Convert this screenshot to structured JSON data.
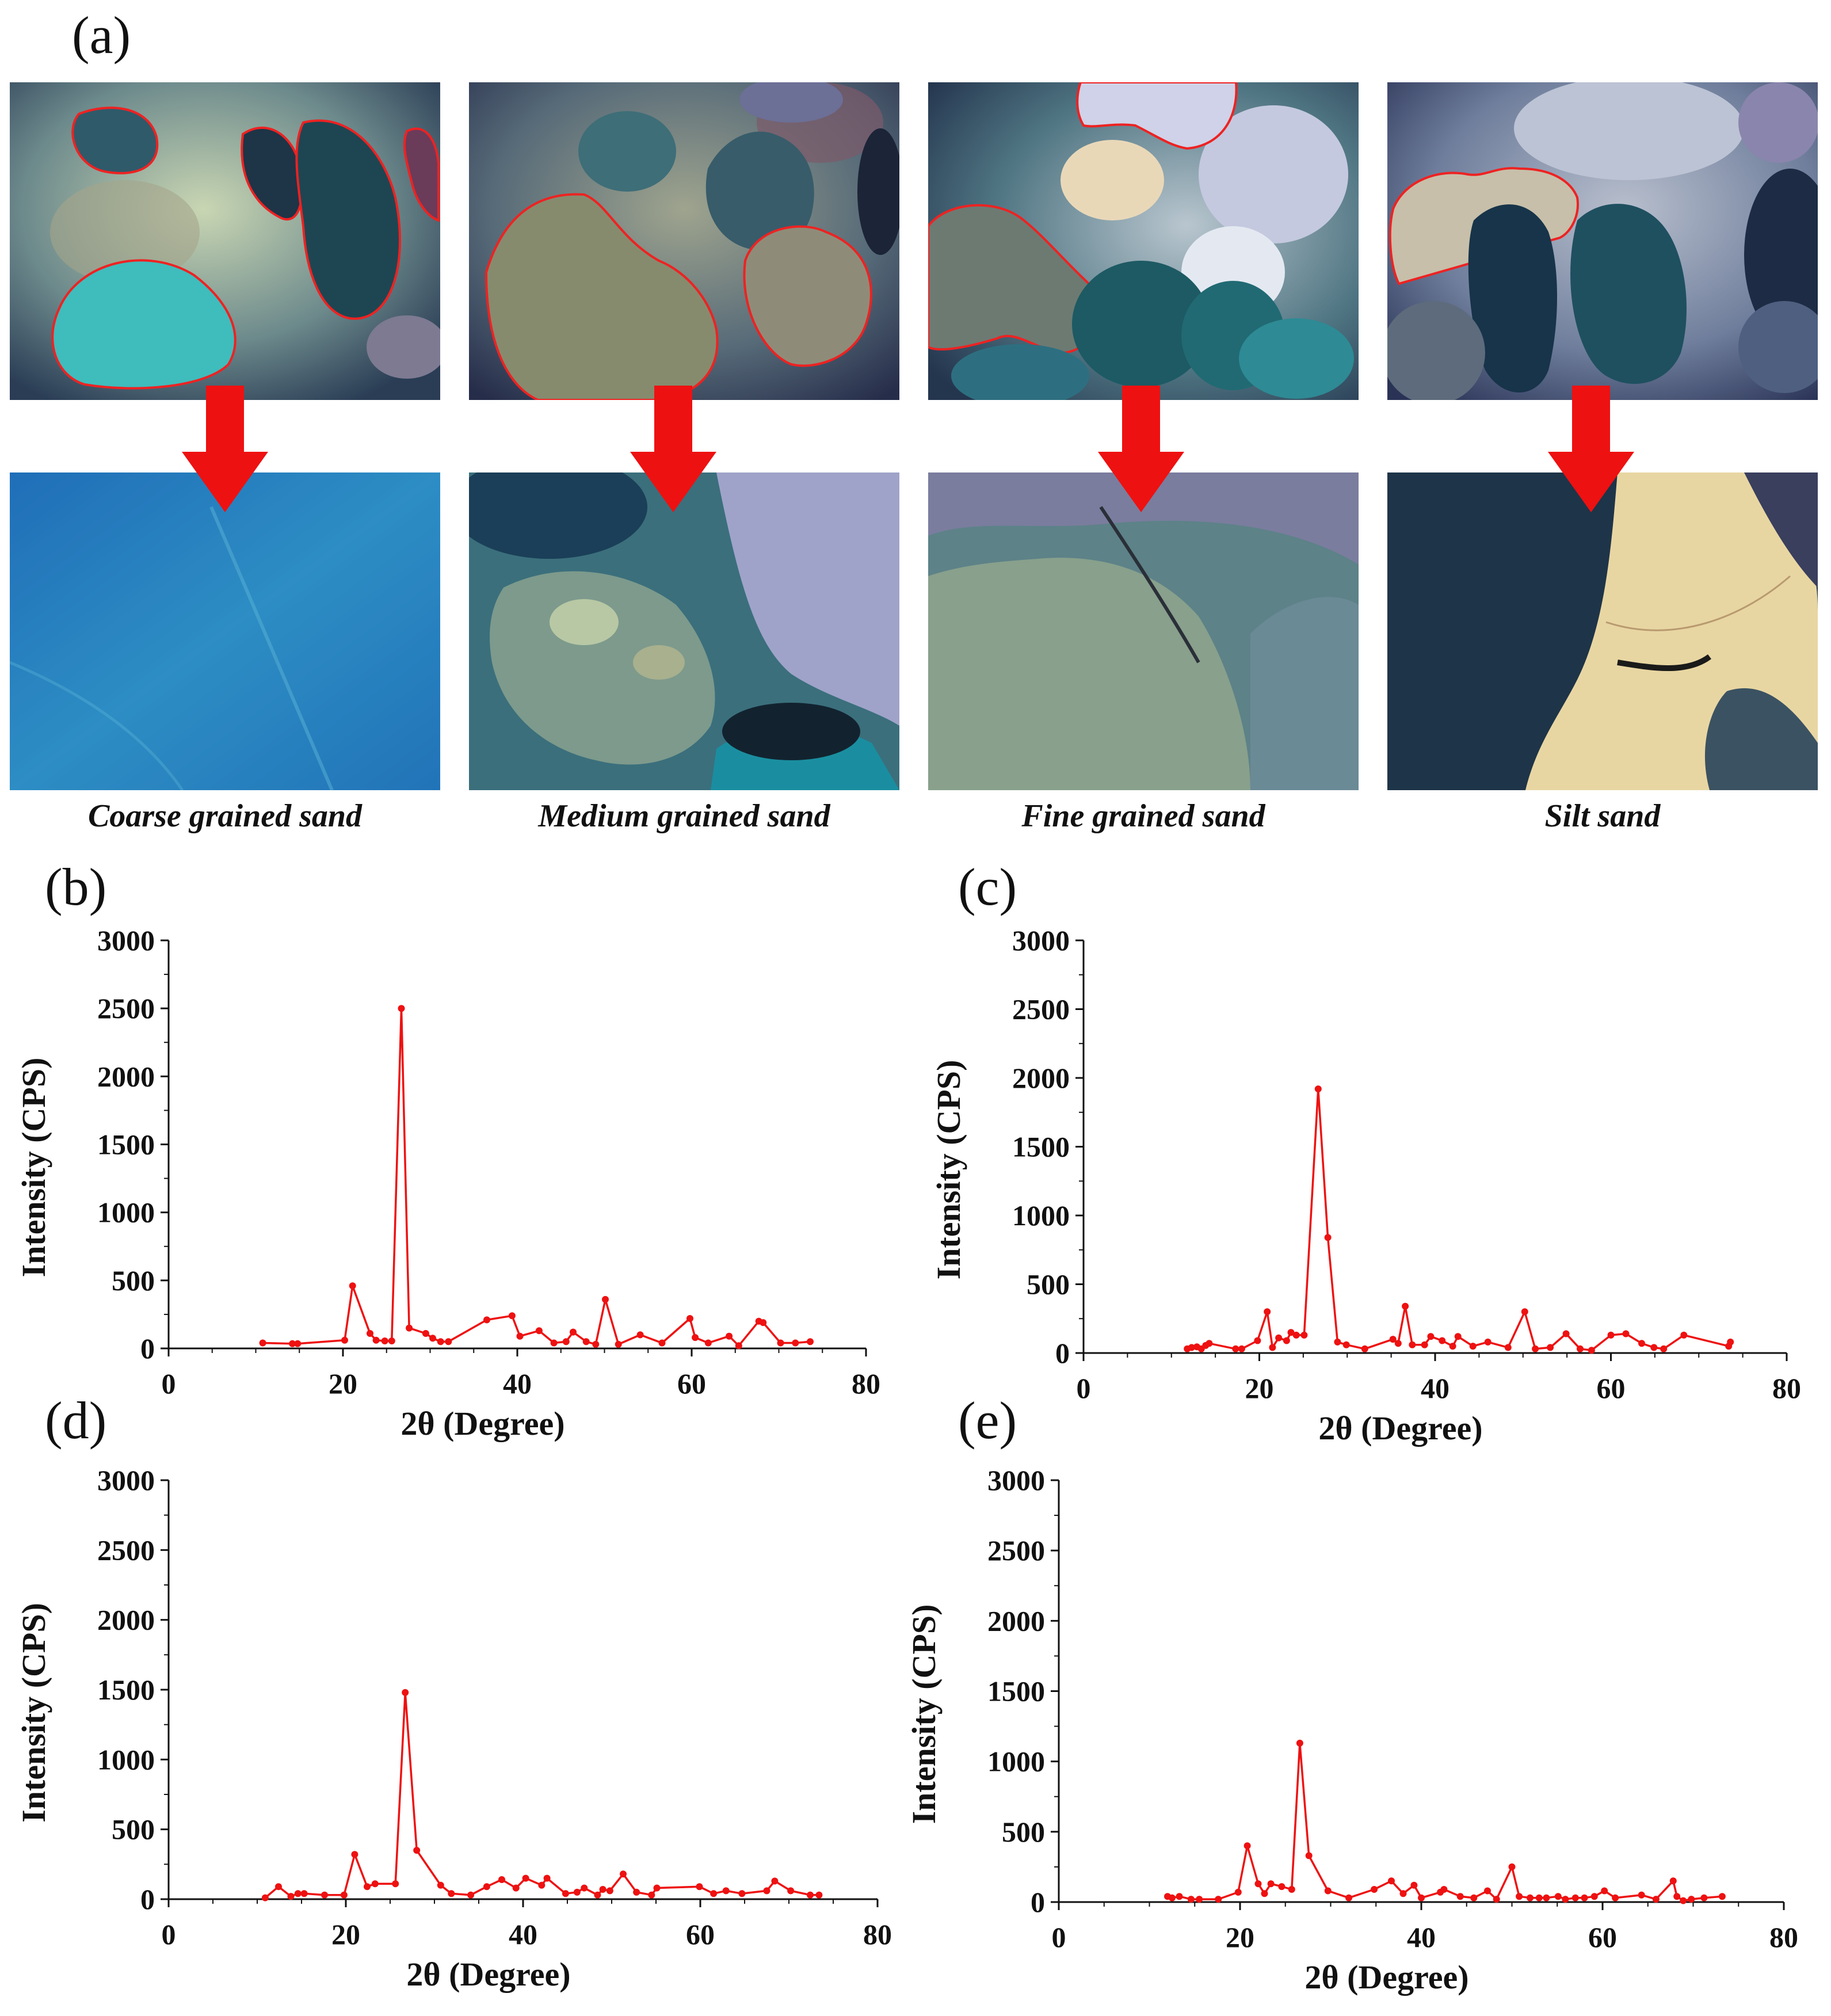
{
  "panel_labels": {
    "a": "(a)",
    "b": "(b)",
    "c": "(c)",
    "d": "(d)",
    "e": "(e)"
  },
  "captions": [
    "Coarse grained sand",
    "Medium grained sand",
    "Fine grained sand",
    "Silt sand"
  ],
  "colors": {
    "series": "#ee1111",
    "arrow": "#ee1111",
    "outline": "#ee2222",
    "axis": "#111111"
  },
  "chart_data": [
    {
      "panel": "(b)",
      "type": "line",
      "xlabel": "2θ (Degree)",
      "ylabel": "Intensity (CPS)",
      "xlim": [
        0,
        80
      ],
      "ylim": [
        0,
        3000
      ],
      "xticks": [
        0,
        20,
        40,
        60,
        80
      ],
      "yticks": [
        0,
        500,
        1000,
        1500,
        2000,
        2500,
        3000
      ],
      "series": [
        {
          "x": [
            10.8,
            14.2,
            14.8,
            20.2,
            21.1,
            23.1,
            23.8,
            24.8,
            25.6,
            26.7,
            27.6,
            29.5,
            30.3,
            31.2,
            32.1,
            36.5,
            39.4,
            40.3,
            42.5,
            44.2,
            45.6,
            46.4,
            47.9,
            49.0,
            50.1,
            51.6,
            54.1,
            56.6,
            59.8,
            60.4,
            61.9,
            64.3,
            65.4,
            67.7,
            68.2,
            70.2,
            71.9,
            73.6
          ],
          "y": [
            40,
            35,
            35,
            60,
            460,
            110,
            60,
            55,
            55,
            2500,
            150,
            110,
            75,
            50,
            50,
            210,
            240,
            90,
            130,
            40,
            50,
            120,
            50,
            30,
            360,
            30,
            100,
            40,
            220,
            80,
            40,
            90,
            20,
            200,
            190,
            40,
            40,
            50
          ]
        }
      ]
    },
    {
      "panel": "(c)",
      "type": "line",
      "xlabel": "2θ (Degree)",
      "ylabel": "Intensity (CPS)",
      "xlim": [
        0,
        80
      ],
      "ylim": [
        0,
        3000
      ],
      "xticks": [
        0,
        20,
        40,
        60,
        80
      ],
      "yticks": [
        0,
        500,
        1000,
        1500,
        2000,
        2500,
        3000
      ],
      "series": [
        {
          "x": [
            11.8,
            12.3,
            12.9,
            13.4,
            13.9,
            14.3,
            17.3,
            18.0,
            19.8,
            20.9,
            21.5,
            22.2,
            23.1,
            23.6,
            24.2,
            25.1,
            26.7,
            27.8,
            28.9,
            29.9,
            32.0,
            35.2,
            35.8,
            36.6,
            37.4,
            38.8,
            39.5,
            40.8,
            42.0,
            42.6,
            44.3,
            46.0,
            48.3,
            50.2,
            51.4,
            53.1,
            54.9,
            56.5,
            57.8,
            60.0,
            61.7,
            63.5,
            64.9,
            66.0,
            68.3,
            73.4,
            73.6
          ],
          "y": [
            30,
            40,
            45,
            30,
            55,
            70,
            30,
            30,
            90,
            300,
            40,
            110,
            90,
            150,
            130,
            130,
            1920,
            840,
            80,
            60,
            30,
            100,
            70,
            340,
            60,
            60,
            120,
            90,
            50,
            120,
            50,
            80,
            40,
            300,
            30,
            40,
            140,
            30,
            20,
            130,
            140,
            70,
            40,
            30,
            130,
            50,
            80
          ]
        }
      ]
    },
    {
      "panel": "(d)",
      "type": "line",
      "xlabel": "2θ (Degree)",
      "ylabel": "Intensity (CPS)",
      "xlim": [
        0,
        80
      ],
      "ylim": [
        0,
        3000
      ],
      "xticks": [
        0,
        20,
        40,
        60,
        80
      ],
      "yticks": [
        0,
        500,
        1000,
        1500,
        2000,
        2500,
        3000
      ],
      "series": [
        {
          "x": [
            10.9,
            12.4,
            13.8,
            14.6,
            15.3,
            17.6,
            19.8,
            21.0,
            22.4,
            23.3,
            25.6,
            26.7,
            28.0,
            30.7,
            31.9,
            34.1,
            35.9,
            37.6,
            39.2,
            40.3,
            42.1,
            42.7,
            44.8,
            46.1,
            46.9,
            48.4,
            49.0,
            49.8,
            51.3,
            52.8,
            54.5,
            55.1,
            59.9,
            61.5,
            62.9,
            64.7,
            67.5,
            68.4,
            70.2,
            72.4,
            73.4
          ],
          "y": [
            10,
            90,
            20,
            40,
            40,
            30,
            30,
            320,
            90,
            110,
            110,
            1480,
            350,
            100,
            40,
            30,
            90,
            140,
            80,
            150,
            100,
            150,
            40,
            50,
            80,
            30,
            70,
            60,
            180,
            50,
            30,
            80,
            90,
            40,
            60,
            40,
            60,
            130,
            60,
            30,
            30
          ]
        }
      ]
    },
    {
      "panel": "(e)",
      "type": "line",
      "xlabel": "2θ (Degree)",
      "ylabel": "Intensity (CPS)",
      "xlim": [
        0,
        80
      ],
      "ylim": [
        0,
        3000
      ],
      "xticks": [
        0,
        20,
        40,
        60,
        80
      ],
      "yticks": [
        0,
        500,
        1000,
        1500,
        2000,
        2500,
        3000
      ],
      "series": [
        {
          "x": [
            12.0,
            12.5,
            13.3,
            14.6,
            15.5,
            17.6,
            19.8,
            20.8,
            22.0,
            22.7,
            23.4,
            24.6,
            25.7,
            26.6,
            27.6,
            29.7,
            32.0,
            34.8,
            36.7,
            38.0,
            39.2,
            40.0,
            42.1,
            42.5,
            44.3,
            45.8,
            47.3,
            48.3,
            50.0,
            50.8,
            52.0,
            53.0,
            53.8,
            55.1,
            55.9,
            57.0,
            58.0,
            59.1,
            60.2,
            61.4,
            64.3,
            65.9,
            67.8,
            68.2,
            68.9,
            69.8,
            71.2,
            73.2
          ],
          "y": [
            40,
            30,
            40,
            20,
            20,
            20,
            70,
            400,
            130,
            60,
            130,
            110,
            90,
            1130,
            330,
            80,
            30,
            90,
            150,
            60,
            120,
            30,
            70,
            90,
            40,
            30,
            80,
            20,
            250,
            40,
            30,
            30,
            30,
            40,
            20,
            30,
            30,
            40,
            80,
            30,
            50,
            20,
            150,
            40,
            10,
            20,
            30,
            40
          ]
        }
      ]
    }
  ]
}
